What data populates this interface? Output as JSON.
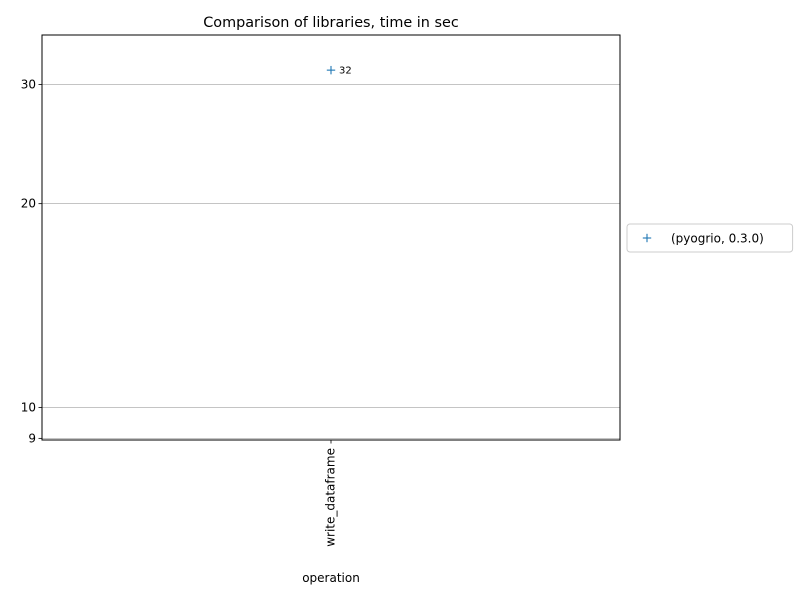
{
  "chart_data": {
    "type": "scatter",
    "title": "Comparison of libraries, time in sec",
    "xlabel": "operation",
    "ylabel": "",
    "categories": [
      "write_dataframe"
    ],
    "y_scale": "log",
    "ylim": [
      8.95,
      35.5
    ],
    "yticks": [
      9,
      10,
      20,
      30
    ],
    "grid": "y",
    "legend_position": "right-outside",
    "series": [
      {
        "name": "(pyogrio, 0.3.0)",
        "marker": "+",
        "color": "#1f77b4",
        "values": [
          31.5
        ],
        "labels": [
          "32"
        ]
      }
    ]
  }
}
